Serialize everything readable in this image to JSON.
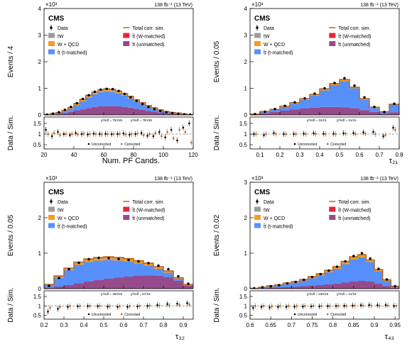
{
  "lumi": "138 fb⁻¹ (13 TeV)",
  "legend": {
    "data": "Data",
    "total": "Total corr. sim.",
    "tw": "tW",
    "wqcd": "W + QCD",
    "tt_t": "t̄t (t-matched)",
    "tt_w": "t̄t (W-matched)",
    "tt_u": "t̄t (unmatched)"
  },
  "colors": {
    "tw": "#9c9c9c",
    "wqcd": "#f89c20",
    "tt_t": "#5790fc",
    "tt_w": "#e42536",
    "tt_u": "#964a8b",
    "total": "#b8651b"
  },
  "ratio_legend": {
    "uncorrected": "Uncorrected",
    "corrected": "Corrected"
  },
  "chart_data": [
    {
      "type": "area",
      "cms_label": "CMS",
      "exponent": "×10³",
      "ylabel": "Events / 4",
      "rlabel": "Data / Sim.",
      "xlabel": "Num. PF Cands.",
      "xlim": [
        20,
        120
      ],
      "ylim": [
        0,
        4
      ],
      "xticks": [
        "20",
        "40",
        "60",
        "80",
        "100",
        "120"
      ],
      "yticks": [
        "0",
        "1",
        "2",
        "3",
        "4"
      ],
      "rlim": [
        0.3,
        1.8
      ],
      "rticks": [
        "0.5",
        "1",
        "1.5"
      ],
      "chi2_uncorr": "χ²/ndf = 75/155",
      "chi2_corr": "χ²/ndf = 75/155",
      "x": [
        22,
        26,
        30,
        34,
        38,
        42,
        46,
        50,
        54,
        58,
        62,
        66,
        70,
        74,
        78,
        82,
        86,
        90,
        94,
        98,
        102,
        106,
        110,
        114,
        118
      ],
      "stack": {
        "tw": [
          0.0,
          0.01,
          0.01,
          0.02,
          0.02,
          0.03,
          0.03,
          0.03,
          0.03,
          0.03,
          0.03,
          0.03,
          0.03,
          0.03,
          0.03,
          0.02,
          0.02,
          0.02,
          0.02,
          0.01,
          0.01,
          0.01,
          0.01,
          0.0,
          0.0
        ],
        "wqcd": [
          0.0,
          0.01,
          0.01,
          0.02,
          0.03,
          0.04,
          0.05,
          0.05,
          0.05,
          0.05,
          0.05,
          0.05,
          0.04,
          0.04,
          0.04,
          0.03,
          0.03,
          0.02,
          0.02,
          0.02,
          0.01,
          0.01,
          0.01,
          0.01,
          0.0
        ],
        "tt_t": [
          0.0,
          0.01,
          0.03,
          0.06,
          0.12,
          0.2,
          0.3,
          0.4,
          0.48,
          0.54,
          0.55,
          0.53,
          0.49,
          0.42,
          0.35,
          0.28,
          0.21,
          0.15,
          0.11,
          0.07,
          0.05,
          0.03,
          0.02,
          0.01,
          0.0
        ],
        "tt_w": [
          0.0,
          0.0,
          0.0,
          0.0,
          0.0,
          0.0,
          0.0,
          0.0,
          0.0,
          0.0,
          0.0,
          0.0,
          0.0,
          0.0,
          0.0,
          0.0,
          0.0,
          0.0,
          0.0,
          0.0,
          0.0,
          0.0,
          0.0,
          0.0,
          0.0
        ],
        "tt_u": [
          0.01,
          0.02,
          0.04,
          0.07,
          0.11,
          0.16,
          0.21,
          0.26,
          0.3,
          0.32,
          0.33,
          0.33,
          0.32,
          0.3,
          0.27,
          0.23,
          0.19,
          0.15,
          0.12,
          0.09,
          0.06,
          0.04,
          0.03,
          0.02,
          0.01
        ]
      },
      "total": [
        0.01,
        0.05,
        0.09,
        0.17,
        0.28,
        0.43,
        0.59,
        0.74,
        0.86,
        0.94,
        0.98,
        0.96,
        0.9,
        0.8,
        0.7,
        0.57,
        0.46,
        0.35,
        0.27,
        0.19,
        0.13,
        0.09,
        0.07,
        0.04,
        0.01
      ],
      "data": [
        0.01,
        0.05,
        0.1,
        0.19,
        0.3,
        0.44,
        0.6,
        0.74,
        0.87,
        0.95,
        0.98,
        0.97,
        0.9,
        0.79,
        0.66,
        0.53,
        0.41,
        0.3,
        0.22,
        0.15,
        0.1,
        0.07,
        0.04,
        0.02,
        0.01
      ],
      "ratio_uncorr": [
        1.2,
        0.9,
        1.1,
        1.0,
        0.95,
        1.05,
        1.0,
        0.98,
        1.02,
        1.0,
        1.01,
        0.99,
        1.0,
        1.03,
        0.97,
        1.0,
        1.05,
        0.92,
        0.9,
        1.1,
        0.85,
        1.2,
        0.7,
        1.3,
        1.5
      ],
      "ratio_corr": [
        1.0,
        1.05,
        0.95,
        1.0,
        1.0,
        0.98,
        1.02,
        1.0,
        1.0,
        0.99,
        1.0,
        1.0,
        1.01,
        0.98,
        1.0,
        1.02,
        0.95,
        1.0,
        1.05,
        0.9,
        1.1,
        0.8,
        1.2,
        1.1,
        0.6
      ]
    },
    {
      "type": "area",
      "cms_label": "CMS",
      "exponent": "×10³",
      "ylabel": "Events / 0.05",
      "rlabel": "Data / Sim.",
      "xlabel": "τ₂₁",
      "xlim": [
        0.05,
        0.8
      ],
      "ylim": [
        0,
        4
      ],
      "xticks": [
        "0.1",
        "0.2",
        "0.3",
        "0.4",
        "0.5",
        "0.6",
        "0.7",
        "0.8"
      ],
      "yticks": [
        "0",
        "1",
        "2",
        "3",
        "4"
      ],
      "rlim": [
        0.3,
        1.8
      ],
      "rticks": [
        "0.5",
        "1",
        "1.5"
      ],
      "chi2_uncorr": "χ²/ndf = 31/15",
      "chi2_corr": "χ²/ndf = 21/15",
      "x": [
        0.075,
        0.125,
        0.175,
        0.225,
        0.275,
        0.325,
        0.375,
        0.425,
        0.475,
        0.525,
        0.575,
        0.625,
        0.675,
        0.725,
        0.775
      ],
      "stack": {
        "tw": [
          0.0,
          0.01,
          0.01,
          0.01,
          0.02,
          0.02,
          0.02,
          0.02,
          0.02,
          0.02,
          0.01,
          0.01,
          0.01,
          0.0,
          0.0
        ],
        "wqcd": [
          0.0,
          0.01,
          0.01,
          0.02,
          0.02,
          0.03,
          0.03,
          0.04,
          0.04,
          0.04,
          0.03,
          0.02,
          0.02,
          0.01,
          0.0
        ],
        "tt_t": [
          0.01,
          0.04,
          0.08,
          0.14,
          0.22,
          0.32,
          0.45,
          0.62,
          0.82,
          0.98,
          0.75,
          0.4,
          0.15,
          0.06,
          0.3
        ],
        "tt_w": [
          0.0,
          0.0,
          0.0,
          0.0,
          0.0,
          0.0,
          0.0,
          0.0,
          0.0,
          0.0,
          0.0,
          0.0,
          0.0,
          0.0,
          0.0
        ],
        "tt_u": [
          0.02,
          0.07,
          0.11,
          0.16,
          0.2,
          0.24,
          0.27,
          0.3,
          0.3,
          0.29,
          0.25,
          0.18,
          0.11,
          0.05,
          0.1
        ]
      },
      "total": [
        0.03,
        0.13,
        0.21,
        0.33,
        0.46,
        0.61,
        0.77,
        0.98,
        1.18,
        1.33,
        1.04,
        0.61,
        0.29,
        0.12,
        0.4
      ],
      "data": [
        0.03,
        0.12,
        0.22,
        0.34,
        0.47,
        0.62,
        0.8,
        1.0,
        1.2,
        1.38,
        1.1,
        0.66,
        0.3,
        0.11,
        0.42
      ],
      "ratio_uncorr": [
        1.0,
        0.95,
        1.05,
        1.0,
        1.0,
        1.02,
        1.04,
        1.02,
        1.02,
        1.04,
        1.05,
        1.08,
        1.1,
        0.9,
        1.3
      ],
      "ratio_corr": [
        1.0,
        1.0,
        1.0,
        1.0,
        1.0,
        1.0,
        1.01,
        1.0,
        1.0,
        1.02,
        1.0,
        1.02,
        1.0,
        0.95,
        1.2
      ]
    },
    {
      "type": "area",
      "cms_label": "CMS",
      "exponent": "×10³",
      "ylabel": "Events / 0.05",
      "rlabel": "Data / Sim.",
      "xlabel": "τ₃₂",
      "xlim": [
        0.2,
        0.95
      ],
      "ylim": [
        0,
        3
      ],
      "xticks": [
        "0.2",
        "0.3",
        "0.4",
        "0.5",
        "0.6",
        "0.7",
        "0.8",
        "0.9"
      ],
      "yticks": [
        "0",
        "1",
        "2"
      ],
      "rlim": [
        0.3,
        1.8
      ],
      "rticks": [
        "0.5",
        "1",
        "1.5"
      ],
      "chi2_uncorr": "χ²/ndf = 350/18",
      "chi2_corr": "χ²/ndf = 67/18",
      "x": [
        0.225,
        0.275,
        0.325,
        0.375,
        0.425,
        0.475,
        0.525,
        0.575,
        0.625,
        0.675,
        0.725,
        0.775,
        0.825,
        0.875,
        0.925
      ],
      "stack": {
        "tw": [
          0.01,
          0.02,
          0.02,
          0.03,
          0.03,
          0.03,
          0.03,
          0.03,
          0.03,
          0.03,
          0.02,
          0.02,
          0.02,
          0.01,
          0.01
        ],
        "wqcd": [
          0.01,
          0.03,
          0.04,
          0.05,
          0.06,
          0.06,
          0.06,
          0.06,
          0.06,
          0.05,
          0.05,
          0.04,
          0.03,
          0.02,
          0.01
        ],
        "tt_t": [
          0.08,
          0.25,
          0.42,
          0.52,
          0.55,
          0.55,
          0.53,
          0.48,
          0.42,
          0.35,
          0.28,
          0.2,
          0.13,
          0.06,
          0.02
        ],
        "tt_w": [
          0.0,
          0.0,
          0.0,
          0.0,
          0.0,
          0.0,
          0.0,
          0.0,
          0.0,
          0.0,
          0.0,
          0.0,
          0.0,
          0.0,
          0.0
        ],
        "tt_u": [
          0.02,
          0.06,
          0.1,
          0.15,
          0.2,
          0.24,
          0.28,
          0.31,
          0.34,
          0.36,
          0.37,
          0.36,
          0.32,
          0.22,
          0.08
        ]
      },
      "total": [
        0.12,
        0.36,
        0.58,
        0.75,
        0.84,
        0.88,
        0.9,
        0.88,
        0.85,
        0.79,
        0.72,
        0.62,
        0.5,
        0.31,
        0.12
      ],
      "data": [
        0.08,
        0.3,
        0.55,
        0.73,
        0.83,
        0.87,
        0.86,
        0.84,
        0.81,
        0.77,
        0.72,
        0.65,
        0.55,
        0.35,
        0.14
      ],
      "ratio_uncorr": [
        0.7,
        0.85,
        0.95,
        0.98,
        0.99,
        0.99,
        0.96,
        0.95,
        0.95,
        0.97,
        1.0,
        1.05,
        1.1,
        1.12,
        1.15
      ],
      "ratio_corr": [
        0.9,
        0.95,
        1.0,
        1.0,
        1.0,
        1.0,
        0.99,
        0.99,
        0.99,
        1.0,
        1.01,
        1.02,
        1.03,
        1.05,
        1.08
      ]
    },
    {
      "type": "area",
      "cms_label": "CMS",
      "exponent": "×10³",
      "ylabel": "Events / 0.02",
      "rlabel": "Data / Sim.",
      "xlabel": "τ₄₃",
      "xlim": [
        0.6,
        0.96
      ],
      "ylim": [
        0,
        3
      ],
      "xticks": [
        "0.6",
        "0.65",
        "0.7",
        "0.75",
        "0.8",
        "0.85",
        "0.9",
        "0.95"
      ],
      "yticks": [
        "0",
        "1",
        "2",
        "3"
      ],
      "rlim": [
        0.3,
        1.8
      ],
      "rticks": [
        "0.5",
        "1",
        "1.5"
      ],
      "chi2_uncorr": "χ²/ndf = 230/18",
      "chi2_corr": "χ²/ndf = 41/18",
      "x": [
        0.61,
        0.63,
        0.65,
        0.67,
        0.69,
        0.71,
        0.73,
        0.75,
        0.77,
        0.79,
        0.81,
        0.83,
        0.85,
        0.87,
        0.89,
        0.91,
        0.93,
        0.95
      ],
      "stack": {
        "tw": [
          0.0,
          0.0,
          0.01,
          0.01,
          0.01,
          0.01,
          0.01,
          0.02,
          0.02,
          0.02,
          0.02,
          0.03,
          0.03,
          0.03,
          0.02,
          0.02,
          0.01,
          0.0
        ],
        "wqcd": [
          0.0,
          0.01,
          0.01,
          0.01,
          0.02,
          0.02,
          0.02,
          0.03,
          0.03,
          0.04,
          0.04,
          0.05,
          0.05,
          0.05,
          0.04,
          0.03,
          0.02,
          0.01
        ],
        "tt_t": [
          0.01,
          0.02,
          0.04,
          0.06,
          0.09,
          0.12,
          0.16,
          0.21,
          0.27,
          0.34,
          0.42,
          0.52,
          0.62,
          0.66,
          0.55,
          0.35,
          0.15,
          0.04
        ],
        "tt_w": [
          0.0,
          0.0,
          0.0,
          0.0,
          0.0,
          0.0,
          0.0,
          0.0,
          0.0,
          0.0,
          0.0,
          0.0,
          0.0,
          0.0,
          0.0,
          0.0,
          0.0,
          0.0
        ],
        "tt_u": [
          0.0,
          0.01,
          0.02,
          0.03,
          0.04,
          0.05,
          0.07,
          0.08,
          0.1,
          0.12,
          0.14,
          0.17,
          0.2,
          0.22,
          0.2,
          0.14,
          0.07,
          0.02
        ]
      },
      "total": [
        0.01,
        0.04,
        0.08,
        0.11,
        0.16,
        0.2,
        0.26,
        0.34,
        0.42,
        0.52,
        0.62,
        0.77,
        0.9,
        0.96,
        0.81,
        0.54,
        0.25,
        0.07
      ],
      "data": [
        0.01,
        0.04,
        0.07,
        0.1,
        0.15,
        0.19,
        0.25,
        0.33,
        0.41,
        0.51,
        0.62,
        0.77,
        0.92,
        1.0,
        0.85,
        0.56,
        0.26,
        0.07
      ],
      "ratio_uncorr": [
        0.9,
        0.95,
        0.92,
        0.95,
        0.95,
        0.96,
        0.97,
        0.98,
        0.98,
        0.99,
        1.0,
        1.01,
        1.02,
        1.04,
        1.05,
        1.04,
        1.05,
        1.0
      ],
      "ratio_corr": [
        1.0,
        1.0,
        0.98,
        1.0,
        1.0,
        1.0,
        1.0,
        1.0,
        1.0,
        1.0,
        1.0,
        1.0,
        1.01,
        1.02,
        1.02,
        1.01,
        1.02,
        1.0
      ]
    }
  ]
}
